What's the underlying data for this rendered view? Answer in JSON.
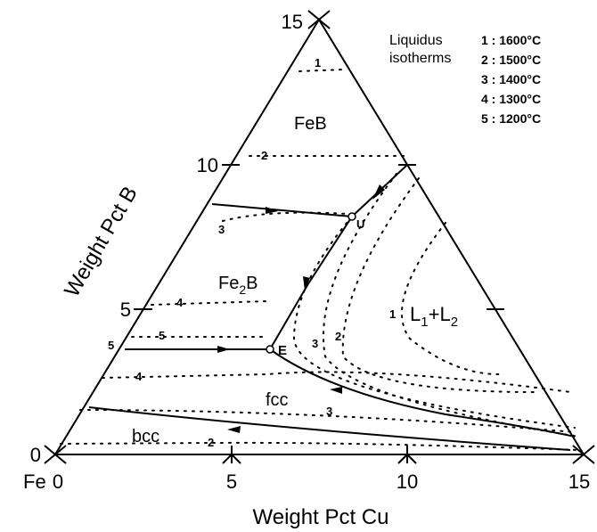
{
  "axes": {
    "left_ticks": [
      "15",
      "10",
      "5",
      "0"
    ],
    "bottom_ticks": [
      "0",
      "5",
      "10",
      "15"
    ],
    "corner": "Fe",
    "left_label": "Weight Pct B",
    "bottom_label": "Weight Pct Cu"
  },
  "legend": {
    "title": [
      "Liquidus",
      "isotherms"
    ],
    "items": [
      "1 : 1600°C",
      "2 : 1500°C",
      "3 : 1400°C",
      "4 : 1300°C",
      "5 : 1200°C"
    ]
  },
  "regions": {
    "feb": "FeB",
    "fe2b": [
      "Fe",
      "2",
      "B"
    ],
    "liquid": [
      "L",
      "1",
      "+L",
      "2"
    ],
    "fcc": "fcc",
    "bcc": "bcc"
  },
  "points": {
    "u": "U",
    "e": "E"
  },
  "isotherm_labels": [
    "1",
    "2",
    "3",
    "4",
    "5",
    "5",
    "4",
    "3",
    "2",
    "3",
    "2",
    "1"
  ]
}
